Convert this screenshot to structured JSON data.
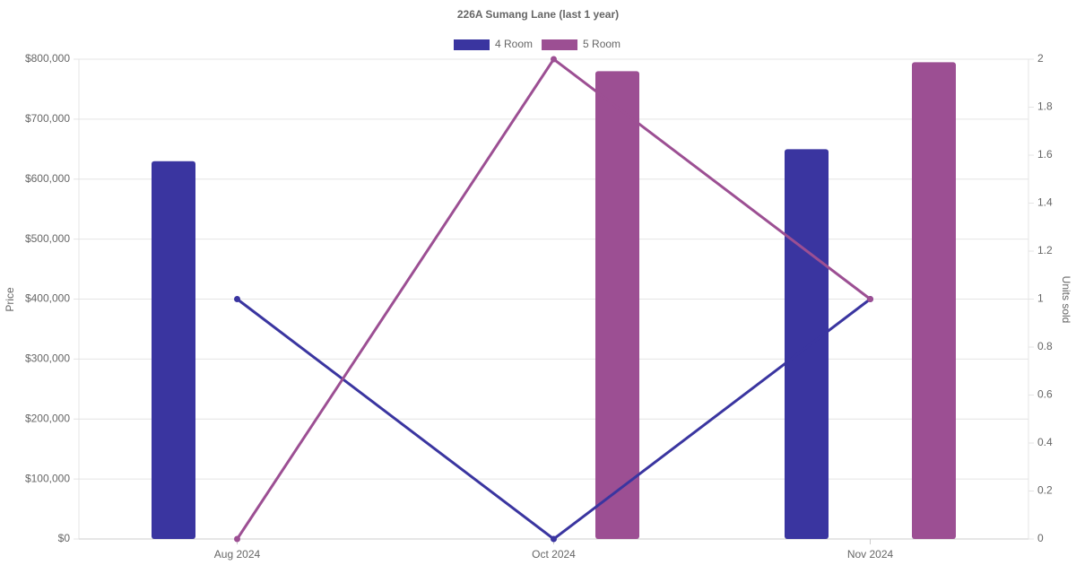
{
  "chart_data": {
    "type": "bar-line",
    "title": "226A Sumang Lane (last 1 year)",
    "y_label": "Price",
    "y2_label": "Units sold",
    "categories": [
      "Aug 2024",
      "Oct 2024",
      "Nov 2024"
    ],
    "series": [
      {
        "name": "4 Room",
        "color": "#3a35a0",
        "values": [
          630000,
          null,
          650000
        ],
        "units": [
          1,
          0,
          1
        ]
      },
      {
        "name": "5 Room",
        "color": "#9c4f93",
        "values": [
          null,
          780000,
          795000
        ],
        "units": [
          0,
          2,
          1
        ]
      }
    ],
    "ylim": [
      0,
      800000
    ],
    "yticks": [
      {
        "value": 0,
        "label": "$0"
      },
      {
        "value": 100000,
        "label": "$100,000"
      },
      {
        "value": 200000,
        "label": "$200,000"
      },
      {
        "value": 300000,
        "label": "$300,000"
      },
      {
        "value": 400000,
        "label": "$400,000"
      },
      {
        "value": 500000,
        "label": "$500,000"
      },
      {
        "value": 600000,
        "label": "$600,000"
      },
      {
        "value": 700000,
        "label": "$700,000"
      },
      {
        "value": 800000,
        "label": "$800,000"
      }
    ],
    "y2lim": [
      0,
      2
    ],
    "y2ticks": [
      0,
      0.2,
      0.4,
      0.6,
      0.8,
      1,
      1.2,
      1.4,
      1.6,
      1.8,
      2
    ],
    "grid": true
  }
}
